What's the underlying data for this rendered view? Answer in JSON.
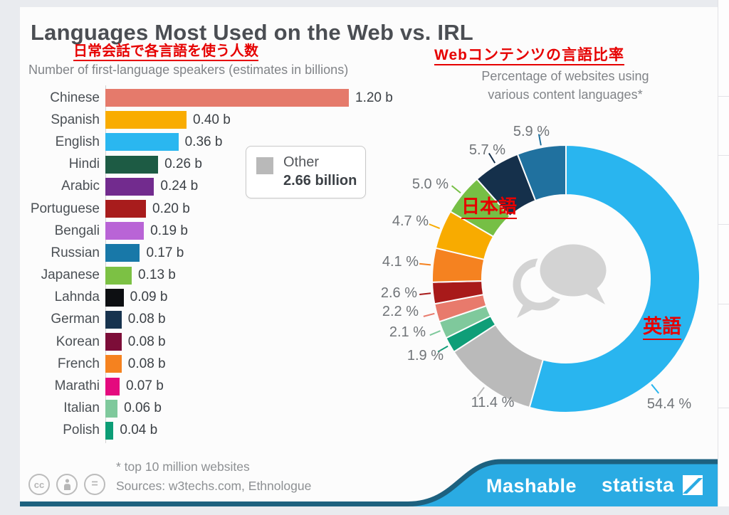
{
  "header": {
    "title": "Languages Most Used on the Web vs. IRL",
    "annotation_speakers_jp": "日常会話で各言語を使う人数",
    "annotation_web_jp": "Webコンテンツの言語比率",
    "left_subtitle": "Number of first-language speakers (estimates in billions)",
    "right_subtitle_line1": "Percentage of websites using",
    "right_subtitle_line2": "various content languages*"
  },
  "legend": {
    "label": "Other",
    "value": "2.66 billion"
  },
  "donut_annotations": {
    "japanese_jp": "日本語",
    "english_jp": "英語"
  },
  "footer": {
    "footnote": "* top 10 million websites",
    "sources": "Sources: w3techs.com, Ethnologue",
    "brand_mashable": "Mashable",
    "brand_statista": "statista",
    "cc_icon_1": "cc",
    "cc_icon_3": "="
  },
  "colors": {
    "annotation_red": "#e60000",
    "wave_blue": "#2aabe3",
    "wave_teal": "#1d617f",
    "card_bg": "#fcfcfc"
  },
  "chart_data": [
    {
      "type": "bar",
      "orientation": "horizontal",
      "title": "Number of first-language speakers (estimates in billions)",
      "unit": "billions",
      "xlim": [
        0,
        1.26
      ],
      "categories": [
        "Chinese",
        "Spanish",
        "English",
        "Hindi",
        "Arabic",
        "Portuguese",
        "Bengali",
        "Russian",
        "Japanese",
        "Lahnda",
        "German",
        "Korean",
        "French",
        "Marathi",
        "Italian",
        "Polish"
      ],
      "values": [
        1.2,
        0.4,
        0.36,
        0.26,
        0.24,
        0.2,
        0.19,
        0.17,
        0.13,
        0.09,
        0.08,
        0.08,
        0.08,
        0.07,
        0.06,
        0.04
      ],
      "value_labels": [
        "1.20 b",
        "0.40 b",
        "0.36 b",
        "0.26 b",
        "0.24 b",
        "0.20 b",
        "0.19 b",
        "0.17 b",
        "0.13 b",
        "0.09 b",
        "0.08 b",
        "0.08 b",
        "0.08 b",
        "0.07 b",
        "0.06 b",
        "0.04 b"
      ],
      "colors": [
        "#e57a6b",
        "#f9ac00",
        "#2ab7f0",
        "#1d5b44",
        "#722b8e",
        "#a81c1c",
        "#b964d6",
        "#1878a8",
        "#7cc144",
        "#0d0f12",
        "#17334e",
        "#7c0d38",
        "#f5821f",
        "#e40a7e",
        "#7fc99c",
        "#0c9d76"
      ],
      "legend": {
        "label": "Other",
        "value": "2.66 billion"
      }
    },
    {
      "type": "pie",
      "subtype": "donut",
      "title": "Percentage of websites using various content languages*",
      "start_angle_deg": 0,
      "direction": "clockwise",
      "inner_radius_ratio": 0.63,
      "labels": [
        "English",
        "Other",
        "Polish",
        "Italian",
        "Chinese",
        "Portuguese",
        "French",
        "Spanish",
        "Japanese",
        "German",
        "Russian"
      ],
      "values": [
        54.4,
        11.4,
        1.9,
        2.1,
        2.2,
        2.6,
        4.1,
        4.7,
        5.0,
        5.7,
        5.9
      ],
      "value_labels": [
        "54.4 %",
        "11.4 %",
        "1.9 %",
        "2.1 %",
        "2.2 %",
        "2.6 %",
        "4.1 %",
        "4.7 %",
        "5.0 %",
        "5.7 %",
        "5.9 %"
      ],
      "colors": [
        "#29b5ef",
        "#bababa",
        "#0f9e78",
        "#7fc99c",
        "#e87a6c",
        "#a81a1a",
        "#f58220",
        "#f8ab00",
        "#76bf45",
        "#15304b",
        "#20719f"
      ]
    }
  ]
}
